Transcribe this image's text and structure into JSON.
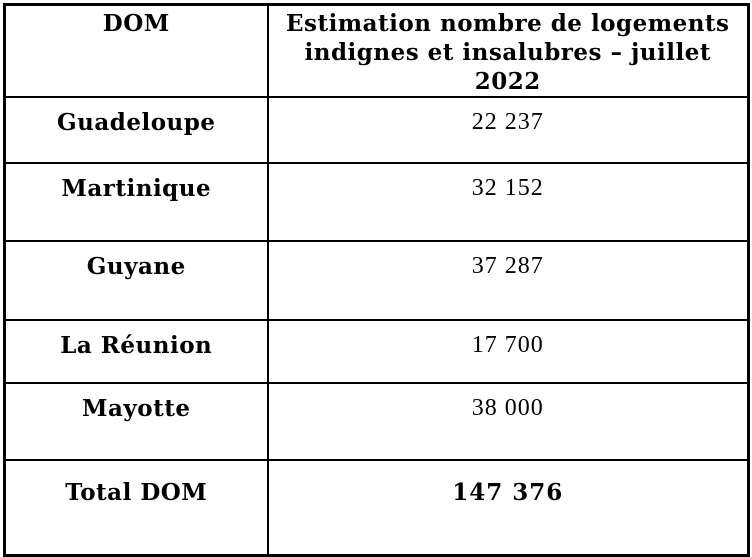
{
  "colors": {
    "background": "#ffffff",
    "border": "#000000",
    "text": "#000000"
  },
  "table": {
    "header": {
      "col1": "DOM",
      "col2_line1": "Estimation nombre de logements",
      "col2_line2": "indignes et insalubres – juillet 2022",
      "col2_full": "Estimation nombre de logements indignes et insalubres – juillet 2022"
    },
    "rows": [
      {
        "label": "Guadeloupe",
        "value": "22 237"
      },
      {
        "label": "Martinique",
        "value": "32 152"
      },
      {
        "label": "Guyane",
        "value": "37 287"
      },
      {
        "label": "La Réunion",
        "value": "17 700"
      },
      {
        "label": "Mayotte",
        "value": "38 000"
      },
      {
        "label": "Total DOM",
        "value": "147 376"
      }
    ]
  },
  "chart_data": {
    "type": "table",
    "title": "Estimation nombre de logements indignes et insalubres – juillet 2022",
    "columns": [
      "DOM",
      "Estimation nombre de logements indignes et insalubres – juillet 2022"
    ],
    "categories": [
      "Guadeloupe",
      "Martinique",
      "Guyane",
      "La Réunion",
      "Mayotte"
    ],
    "values": [
      22237,
      32152,
      37287,
      17700,
      38000
    ],
    "total_label": "Total DOM",
    "total_value": 147376
  }
}
